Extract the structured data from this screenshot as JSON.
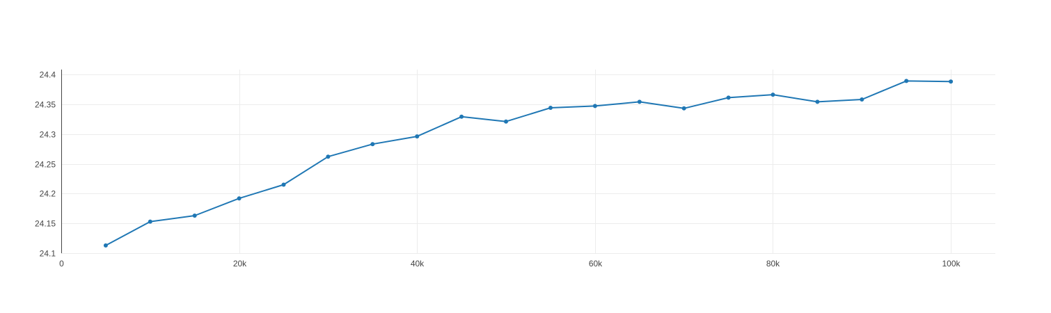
{
  "chart_data": {
    "type": "line",
    "title": "",
    "xlabel": "",
    "ylabel": "",
    "xlim": [
      0,
      105000
    ],
    "ylim": [
      24.1,
      24.4
    ],
    "grid": true,
    "x_ticks": [
      {
        "value": 0,
        "label": "0"
      },
      {
        "value": 20000,
        "label": "20k"
      },
      {
        "value": 40000,
        "label": "40k"
      },
      {
        "value": 60000,
        "label": "60k"
      },
      {
        "value": 80000,
        "label": "80k"
      },
      {
        "value": 100000,
        "label": "100k"
      }
    ],
    "y_ticks": [
      {
        "value": 24.1,
        "label": "24.1"
      },
      {
        "value": 24.15,
        "label": "24.15"
      },
      {
        "value": 24.2,
        "label": "24.2"
      },
      {
        "value": 24.25,
        "label": "24.25"
      },
      {
        "value": 24.3,
        "label": "24.3"
      },
      {
        "value": 24.35,
        "label": "24.35"
      },
      {
        "value": 24.4,
        "label": "24.4"
      }
    ],
    "series": [
      {
        "color": "#1f77b4",
        "x": [
          5000,
          10000,
          15000,
          20000,
          25000,
          30000,
          35000,
          40000,
          45000,
          50000,
          55000,
          60000,
          65000,
          70000,
          75000,
          80000,
          85000,
          90000,
          95000,
          100000
        ],
        "y": [
          24.113,
          24.153,
          24.163,
          24.192,
          24.215,
          24.262,
          24.283,
          24.296,
          24.329,
          24.321,
          24.344,
          24.347,
          24.354,
          24.343,
          24.361,
          24.366,
          24.354,
          24.358,
          24.389,
          24.388
        ]
      }
    ]
  }
}
